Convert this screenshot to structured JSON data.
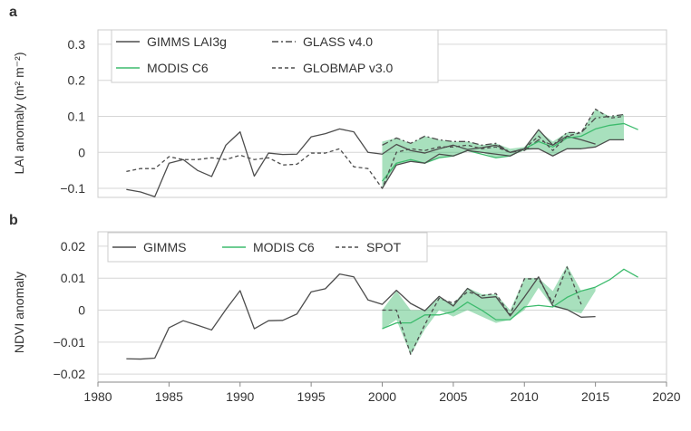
{
  "chart_data": [
    {
      "panel_label": "a",
      "type": "line",
      "ylabel": "LAI anomaly (m² m⁻²)",
      "ylim": [
        -0.125,
        0.34
      ],
      "xlim": [
        1980,
        2020
      ],
      "yticks": [
        -0.1,
        0,
        0.1,
        0.2,
        0.3
      ],
      "ytick_labels": [
        "−0.1",
        "0",
        "0.1",
        "0.2",
        "0.3"
      ],
      "grid": "horizontal",
      "legend": {
        "placement": "top-left",
        "entries": [
          {
            "label": "GIMMS LAI3g",
            "style": "solid",
            "color": "#4d4d4d"
          },
          {
            "label": "GLASS v4.0",
            "style": "dashdot",
            "color": "#4d4d4d"
          },
          {
            "label": "MODIS C6",
            "style": "solid",
            "color": "#3dbb6d"
          },
          {
            "label": "GLOBMAP v3.0",
            "style": "dashed",
            "color": "#4d4d4d"
          }
        ]
      },
      "band": {
        "color": "#3dbb6d",
        "x": [
          2000,
          2001,
          2002,
          2003,
          2004,
          2005,
          2006,
          2007,
          2008,
          2009,
          2010,
          2011,
          2012,
          2013,
          2014,
          2015,
          2016,
          2017
        ],
        "lower": [
          -0.1,
          -0.035,
          -0.025,
          -0.03,
          -0.015,
          -0.01,
          0.005,
          0.0,
          -0.015,
          -0.01,
          0.005,
          0.01,
          -0.01,
          0.01,
          0.01,
          0.015,
          0.035,
          0.035
        ],
        "upper": [
          0.03,
          0.04,
          0.025,
          0.045,
          0.035,
          0.03,
          0.03,
          0.02,
          0.025,
          0.01,
          0.015,
          0.06,
          0.03,
          0.055,
          0.055,
          0.12,
          0.1,
          0.105
        ]
      },
      "series": [
        {
          "name": "GIMMS LAI3g",
          "style": "solid",
          "color": "#4d4d4d",
          "x": [
            1982,
            1983,
            1984,
            1985,
            1986,
            1987,
            1988,
            1989,
            1990,
            1991,
            1992,
            1993,
            1994,
            1995,
            1996,
            1997,
            1998,
            1999,
            2000,
            2001,
            2002,
            2003,
            2004,
            2005,
            2006,
            2007,
            2008,
            2009,
            2010,
            2011,
            2012,
            2013,
            2014,
            2015
          ],
          "values": [
            -0.103,
            -0.11,
            -0.123,
            -0.03,
            -0.02,
            -0.05,
            -0.067,
            0.02,
            0.057,
            -0.066,
            -0.002,
            -0.006,
            -0.005,
            0.043,
            0.052,
            0.065,
            0.057,
            0.0,
            -0.005,
            0.022,
            0.005,
            -0.002,
            0.01,
            0.02,
            0.008,
            0.013,
            0.02,
            0.0,
            0.01,
            0.063,
            0.02,
            0.045,
            0.035,
            0.023
          ]
        },
        {
          "name": "GLASS v4.0",
          "style": "dashdot",
          "color": "#4d4d4d",
          "x": [
            2000,
            2001,
            2002,
            2003,
            2004,
            2005,
            2006,
            2007,
            2008,
            2009,
            2010,
            2011,
            2012,
            2013,
            2014,
            2015,
            2016,
            2017
          ],
          "values": [
            0.02,
            0.04,
            0.025,
            0.045,
            0.035,
            0.03,
            0.03,
            0.02,
            0.025,
            0.0,
            0.005,
            0.035,
            0.02,
            0.055,
            0.055,
            0.095,
            0.1,
            0.105
          ]
        },
        {
          "name": "MODIS C6",
          "style": "solid",
          "color": "#3dbb6d",
          "x": [
            2000,
            2001,
            2002,
            2003,
            2004,
            2005,
            2006,
            2007,
            2008,
            2009,
            2010,
            2011,
            2012,
            2013,
            2014,
            2015,
            2016,
            2017,
            2018
          ],
          "values": [
            -0.08,
            -0.03,
            -0.02,
            -0.03,
            -0.015,
            -0.01,
            0.005,
            -0.005,
            -0.015,
            -0.01,
            0.01,
            0.03,
            0.015,
            0.04,
            0.045,
            0.065,
            0.075,
            0.08,
            0.063
          ]
        },
        {
          "name": "GLOBMAP v3.0",
          "style": "dashed",
          "color": "#4d4d4d",
          "x": [
            1982,
            1983,
            1984,
            1985,
            1986,
            1987,
            1988,
            1989,
            1990,
            1991,
            1992,
            1993,
            1994,
            1995,
            1996,
            1997,
            1998,
            1999,
            2000,
            2001,
            2002,
            2003,
            2004,
            2005,
            2006,
            2007,
            2008,
            2009,
            2010,
            2011,
            2012,
            2013,
            2014,
            2015,
            2016,
            2017
          ],
          "values": [
            -0.053,
            -0.045,
            -0.045,
            -0.012,
            -0.02,
            -0.02,
            -0.015,
            -0.02,
            -0.008,
            -0.02,
            -0.015,
            -0.035,
            -0.033,
            -0.002,
            -0.002,
            0.01,
            -0.04,
            -0.045,
            -0.1,
            0.0,
            0.01,
            0.005,
            0.015,
            0.015,
            0.02,
            0.01,
            0.015,
            0.0,
            0.01,
            0.045,
            0.005,
            0.045,
            0.055,
            0.12,
            0.095,
            0.1
          ]
        },
        {
          "name": "",
          "style": "solid",
          "color": "#4d4d4d",
          "x": [
            2000,
            2001,
            2002,
            2003,
            2004,
            2005,
            2006,
            2007,
            2008,
            2009,
            2010,
            2011,
            2012,
            2013,
            2014,
            2015,
            2016,
            2017
          ],
          "values": [
            -0.1,
            -0.035,
            -0.025,
            -0.03,
            -0.005,
            -0.01,
            0.005,
            0.0,
            -0.005,
            -0.01,
            0.01,
            0.01,
            -0.01,
            0.01,
            0.01,
            0.015,
            0.035,
            0.035
          ]
        }
      ]
    },
    {
      "panel_label": "b",
      "type": "line",
      "ylabel": "NDVI anomaly",
      "ylim": [
        -0.0225,
        0.0245
      ],
      "xlim": [
        1980,
        2020
      ],
      "yticks": [
        -0.02,
        -0.01,
        0,
        0.01,
        0.02
      ],
      "ytick_labels": [
        "−0.02",
        "−0.01",
        "0",
        "0.01",
        "0.02"
      ],
      "xticks": [
        1980,
        1985,
        1990,
        1995,
        2000,
        2005,
        2010,
        2015,
        2020
      ],
      "grid": "horizontal",
      "legend": {
        "placement": "top-left",
        "entries": [
          {
            "label": "GIMMS",
            "style": "solid",
            "color": "#4d4d4d"
          },
          {
            "label": "MODIS C6",
            "style": "solid",
            "color": "#3dbb6d"
          },
          {
            "label": "SPOT",
            "style": "dashed",
            "color": "#4d4d4d"
          }
        ]
      },
      "band": {
        "color": "#3dbb6d",
        "x": [
          2000,
          2001,
          2002,
          2003,
          2004,
          2005,
          2006,
          2007,
          2008,
          2009,
          2010,
          2011,
          2012,
          2013,
          2014,
          2015
        ],
        "lower": [
          -0.006,
          -0.003,
          -0.014,
          -0.006,
          0.0,
          -0.002,
          0.0,
          -0.002,
          -0.004,
          -0.003,
          0.0,
          0.007,
          0.001,
          0.0,
          -0.001,
          0.006
        ],
        "upper": [
          0.0,
          0.006,
          0.0,
          0.0,
          0.004,
          0.002,
          0.007,
          0.005,
          0.005,
          0.0,
          0.01,
          0.01,
          0.006,
          0.014,
          0.006,
          0.007
        ]
      },
      "series": [
        {
          "name": "GIMMS",
          "style": "solid",
          "color": "#4d4d4d",
          "x": [
            1982,
            1983,
            1984,
            1985,
            1986,
            1987,
            1988,
            1989,
            1990,
            1991,
            1992,
            1993,
            1994,
            1995,
            1996,
            1997,
            1998,
            1999,
            2000,
            2001,
            2002,
            2003,
            2004,
            2005,
            2006,
            2007,
            2008,
            2009,
            2010,
            2011,
            2012,
            2013,
            2014,
            2015
          ],
          "values": [
            -0.0152,
            -0.0153,
            -0.015,
            -0.0055,
            -0.0033,
            -0.0047,
            -0.0062,
            0.0002,
            0.0061,
            -0.0058,
            -0.0033,
            -0.0032,
            -0.0012,
            0.0057,
            0.0067,
            0.0113,
            0.0104,
            0.0032,
            0.0018,
            0.0062,
            0.0021,
            -0.0002,
            0.0043,
            0.0013,
            0.0068,
            0.0038,
            0.0042,
            -0.0018,
            0.0041,
            0.0104,
            0.0014,
            0.0002,
            -0.0022,
            -0.002
          ]
        },
        {
          "name": "MODIS C6",
          "style": "solid",
          "color": "#3dbb6d",
          "x": [
            2000,
            2001,
            2002,
            2003,
            2004,
            2005,
            2006,
            2007,
            2008,
            2009,
            2010,
            2011,
            2012,
            2013,
            2014,
            2015,
            2016,
            2017,
            2018
          ],
          "values": [
            -0.0058,
            -0.004,
            -0.004,
            -0.0015,
            -0.0015,
            -0.0005,
            0.0025,
            0.0,
            -0.003,
            -0.003,
            0.001,
            0.0015,
            0.001,
            0.004,
            0.006,
            0.0072,
            0.0095,
            0.0128,
            0.0103
          ]
        },
        {
          "name": "SPOT",
          "style": "dashed",
          "color": "#4d4d4d",
          "x": [
            2000,
            2001,
            2002,
            2003,
            2004,
            2005,
            2006,
            2007,
            2008,
            2009,
            2010,
            2011,
            2012,
            2013,
            2014
          ],
          "values": [
            0.0,
            0.0,
            -0.0138,
            -0.0045,
            0.0037,
            0.0022,
            0.0057,
            0.0045,
            0.0052,
            -0.0015,
            0.0098,
            0.0098,
            0.0023,
            0.0135,
            0.0018
          ]
        }
      ]
    }
  ],
  "xtick_labels": [
    "1980",
    "1985",
    "1990",
    "1995",
    "2000",
    "2005",
    "2010",
    "2015",
    "2020"
  ]
}
